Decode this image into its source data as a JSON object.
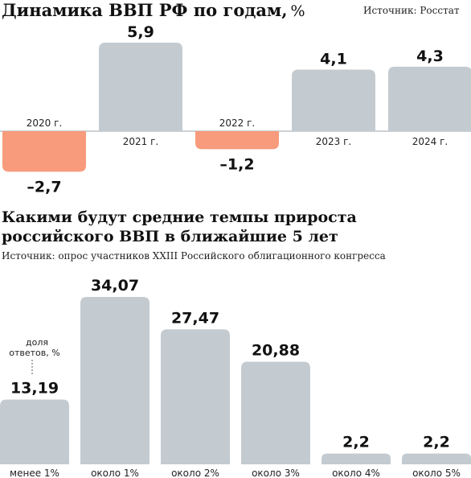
{
  "colors": {
    "positive": "#c3cbd1",
    "negative": "#f79b7c",
    "baseline": "#9aa3ab"
  },
  "charts": {
    "gdp": {
      "title": "Динамика ВВП РФ по годам,",
      "unit": "%",
      "source": "Источник: Росстат"
    },
    "forecast": {
      "title_line1": "Какими будут средние темпы прироста",
      "title_line2": "российского ВВП в ближайшие 5 лет",
      "source": "Источник: опрос участников XXIII Российского облигационного конгресса",
      "note_line1": "доля",
      "note_line2": "ответов, %"
    }
  },
  "chart_data": [
    {
      "type": "bar",
      "title": "Динамика ВВП РФ по годам, %",
      "categories": [
        "2020 г.",
        "2021 г.",
        "2022 г.",
        "2023 г.",
        "2024 г."
      ],
      "values": [
        -2.7,
        5.9,
        -1.2,
        4.1,
        4.3
      ],
      "labels": [
        "–2,7",
        "5,9",
        "–1,2",
        "4,1",
        "4,3"
      ],
      "ylim": [
        -2.7,
        5.9
      ]
    },
    {
      "type": "bar",
      "title": "Какими будут средние темпы прироста российского ВВП в ближайшие 5 лет",
      "categories": [
        "менее 1%",
        "около 1%",
        "около 2%",
        "около 3%",
        "около 4%",
        "около 5%"
      ],
      "values": [
        13.19,
        34.07,
        27.47,
        20.88,
        2.2,
        2.2
      ],
      "labels": [
        "13,19",
        "34,07",
        "27,47",
        "20,88",
        "2,2",
        "2,2"
      ],
      "ylim": [
        0,
        34.07
      ]
    }
  ]
}
